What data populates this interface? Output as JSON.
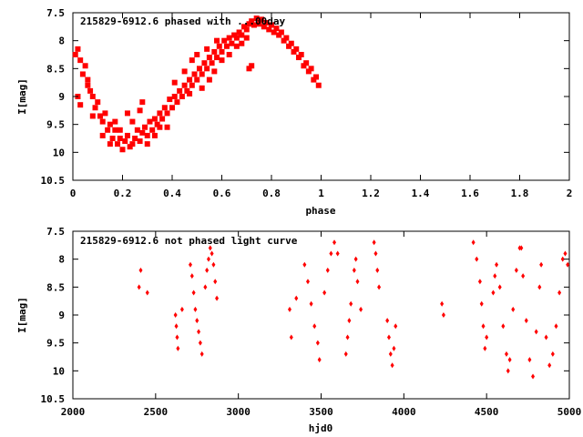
{
  "chart_data": [
    {
      "type": "scatter",
      "title": "215829-6912.6 phased with ...00day",
      "xlabel": "phase",
      "ylabel": "I[mag]",
      "xlim": [
        0,
        2
      ],
      "ylim": [
        10.5,
        7.5
      ],
      "y_inverted": true,
      "x_ticks": [
        0,
        0.2,
        0.4,
        0.6,
        0.8,
        1,
        1.2,
        1.4,
        1.6,
        1.8,
        2
      ],
      "x_tick_labels": [
        "0",
        "0.2",
        "0.4",
        "0.6",
        "0.8",
        "1",
        "1.2",
        "1.4",
        "1.6",
        "1.8",
        "2"
      ],
      "y_ticks": [
        7.5,
        8,
        8.5,
        9,
        9.5,
        10,
        10.5
      ],
      "y_tick_labels": [
        "7.5",
        "8",
        "8.5",
        "9",
        "9.5",
        "10",
        "10.5"
      ],
      "grid": false,
      "marker": "filled-square",
      "color": "#ff0000",
      "series": [
        {
          "points": [
            [
              0.01,
              8.25
            ],
            [
              0.03,
              8.35
            ],
            [
              0.04,
              8.6
            ],
            [
              0.05,
              8.45
            ],
            [
              0.06,
              8.7
            ],
            [
              0.07,
              8.9
            ],
            [
              0.08,
              9.0
            ],
            [
              0.09,
              9.2
            ],
            [
              0.1,
              9.1
            ],
            [
              0.11,
              9.35
            ],
            [
              0.12,
              9.45
            ],
            [
              0.13,
              9.3
            ],
            [
              0.14,
              9.6
            ],
            [
              0.15,
              9.5
            ],
            [
              0.16,
              9.75
            ],
            [
              0.17,
              9.6
            ],
            [
              0.18,
              9.85
            ],
            [
              0.19,
              9.75
            ],
            [
              0.2,
              9.95
            ],
            [
              0.21,
              9.8
            ],
            [
              0.22,
              9.7
            ],
            [
              0.23,
              9.9
            ],
            [
              0.24,
              9.85
            ],
            [
              0.25,
              9.75
            ],
            [
              0.26,
              9.6
            ],
            [
              0.27,
              9.8
            ],
            [
              0.28,
              9.65
            ],
            [
              0.29,
              9.55
            ],
            [
              0.3,
              9.7
            ],
            [
              0.31,
              9.45
            ],
            [
              0.32,
              9.6
            ],
            [
              0.33,
              9.4
            ],
            [
              0.34,
              9.5
            ],
            [
              0.35,
              9.3
            ],
            [
              0.36,
              9.4
            ],
            [
              0.37,
              9.2
            ],
            [
              0.38,
              9.3
            ],
            [
              0.39,
              9.05
            ],
            [
              0.4,
              9.2
            ],
            [
              0.41,
              9.0
            ],
            [
              0.42,
              9.1
            ],
            [
              0.43,
              8.9
            ],
            [
              0.44,
              9.0
            ],
            [
              0.45,
              8.8
            ],
            [
              0.46,
              8.9
            ],
            [
              0.47,
              8.7
            ],
            [
              0.48,
              8.8
            ],
            [
              0.49,
              8.6
            ],
            [
              0.5,
              8.7
            ],
            [
              0.51,
              8.5
            ],
            [
              0.52,
              8.6
            ],
            [
              0.53,
              8.4
            ],
            [
              0.54,
              8.5
            ],
            [
              0.55,
              8.3
            ],
            [
              0.56,
              8.4
            ],
            [
              0.57,
              8.2
            ],
            [
              0.58,
              8.3
            ],
            [
              0.59,
              8.1
            ],
            [
              0.6,
              8.2
            ],
            [
              0.61,
              8.0
            ],
            [
              0.62,
              8.1
            ],
            [
              0.63,
              7.95
            ],
            [
              0.64,
              8.05
            ],
            [
              0.65,
              7.9
            ],
            [
              0.66,
              7.95
            ],
            [
              0.67,
              7.85
            ],
            [
              0.68,
              7.9
            ],
            [
              0.69,
              7.75
            ],
            [
              0.7,
              7.8
            ],
            [
              0.71,
              7.7
            ],
            [
              0.72,
              7.65
            ],
            [
              0.73,
              7.72
            ],
            [
              0.74,
              7.6
            ],
            [
              0.75,
              7.7
            ],
            [
              0.76,
              7.62
            ],
            [
              0.77,
              7.75
            ],
            [
              0.78,
              7.68
            ],
            [
              0.79,
              7.8
            ],
            [
              0.8,
              7.72
            ],
            [
              0.81,
              7.85
            ],
            [
              0.82,
              7.78
            ],
            [
              0.83,
              7.9
            ],
            [
              0.84,
              7.85
            ],
            [
              0.85,
              8.0
            ],
            [
              0.86,
              7.95
            ],
            [
              0.87,
              8.1
            ],
            [
              0.88,
              8.05
            ],
            [
              0.89,
              8.2
            ],
            [
              0.9,
              8.15
            ],
            [
              0.91,
              8.3
            ],
            [
              0.92,
              8.25
            ],
            [
              0.93,
              8.45
            ],
            [
              0.94,
              8.4
            ],
            [
              0.95,
              8.55
            ],
            [
              0.96,
              8.5
            ],
            [
              0.97,
              8.7
            ],
            [
              0.98,
              8.65
            ],
            [
              0.99,
              8.8
            ],
            [
              0.72,
              8.45
            ],
            [
              0.71,
              8.5
            ],
            [
              0.02,
              9.0
            ],
            [
              0.03,
              9.15
            ],
            [
              0.08,
              9.35
            ],
            [
              0.06,
              8.8
            ],
            [
              0.02,
              8.15
            ],
            [
              0.17,
              9.45
            ],
            [
              0.19,
              9.6
            ],
            [
              0.15,
              9.85
            ],
            [
              0.12,
              9.7
            ],
            [
              0.22,
              9.3
            ],
            [
              0.24,
              9.45
            ],
            [
              0.3,
              9.85
            ],
            [
              0.33,
              9.7
            ],
            [
              0.35,
              9.55
            ],
            [
              0.38,
              9.55
            ],
            [
              0.28,
              9.1
            ],
            [
              0.27,
              9.25
            ],
            [
              0.45,
              8.55
            ],
            [
              0.47,
              8.95
            ],
            [
              0.52,
              8.85
            ],
            [
              0.55,
              8.7
            ],
            [
              0.57,
              8.55
            ],
            [
              0.6,
              8.35
            ],
            [
              0.63,
              8.25
            ],
            [
              0.66,
              8.1
            ],
            [
              0.68,
              8.05
            ],
            [
              0.7,
              7.95
            ],
            [
              0.48,
              8.35
            ],
            [
              0.5,
              8.25
            ],
            [
              0.41,
              8.75
            ],
            [
              0.54,
              8.15
            ],
            [
              0.58,
              8.0
            ]
          ]
        }
      ],
      "annotation": "215829-6912.6 phased with ...00day"
    },
    {
      "type": "scatter",
      "title": "215829-6912.6 not phased light curve",
      "xlabel": "hjd0",
      "ylabel": "I[mag]",
      "xlim": [
        2000,
        5000
      ],
      "ylim": [
        10.5,
        7.5
      ],
      "y_inverted": true,
      "x_ticks": [
        2000,
        2500,
        3000,
        3500,
        4000,
        4500,
        5000
      ],
      "x_tick_labels": [
        "2000",
        "2500",
        "3000",
        "3500",
        "4000",
        "4500",
        "5000"
      ],
      "y_ticks": [
        7.5,
        8,
        8.5,
        9,
        9.5,
        10,
        10.5
      ],
      "y_tick_labels": [
        "7.5",
        "8",
        "8.5",
        "9",
        "9.5",
        "10",
        "10.5"
      ],
      "grid": false,
      "marker": "filled-diamond",
      "color": "#ff0000",
      "series": [
        {
          "points": [
            [
              2400,
              8.5
            ],
            [
              2410,
              8.2
            ],
            [
              2450,
              8.6
            ],
            [
              2620,
              9.0
            ],
            [
              2625,
              9.2
            ],
            [
              2630,
              9.4
            ],
            [
              2635,
              9.6
            ],
            [
              2660,
              8.9
            ],
            [
              2710,
              8.1
            ],
            [
              2720,
              8.3
            ],
            [
              2730,
              8.6
            ],
            [
              2740,
              8.9
            ],
            [
              2750,
              9.1
            ],
            [
              2760,
              9.3
            ],
            [
              2770,
              9.5
            ],
            [
              2780,
              9.7
            ],
            [
              2800,
              8.5
            ],
            [
              2810,
              8.2
            ],
            [
              2820,
              8.0
            ],
            [
              2830,
              7.8
            ],
            [
              2840,
              7.9
            ],
            [
              2850,
              8.1
            ],
            [
              2860,
              8.4
            ],
            [
              2870,
              8.7
            ],
            [
              3310,
              8.9
            ],
            [
              3320,
              9.4
            ],
            [
              3350,
              8.7
            ],
            [
              3400,
              8.1
            ],
            [
              3420,
              8.4
            ],
            [
              3440,
              8.8
            ],
            [
              3460,
              9.2
            ],
            [
              3480,
              9.5
            ],
            [
              3490,
              9.8
            ],
            [
              3520,
              8.6
            ],
            [
              3540,
              8.2
            ],
            [
              3560,
              7.9
            ],
            [
              3580,
              7.7
            ],
            [
              3600,
              7.9
            ],
            [
              3650,
              9.7
            ],
            [
              3660,
              9.4
            ],
            [
              3670,
              9.1
            ],
            [
              3680,
              8.8
            ],
            [
              3700,
              8.2
            ],
            [
              3710,
              8.0
            ],
            [
              3720,
              8.4
            ],
            [
              3740,
              8.9
            ],
            [
              3820,
              7.7
            ],
            [
              3830,
              7.9
            ],
            [
              3840,
              8.2
            ],
            [
              3850,
              8.5
            ],
            [
              3900,
              9.1
            ],
            [
              3910,
              9.4
            ],
            [
              3920,
              9.7
            ],
            [
              3930,
              9.9
            ],
            [
              3940,
              9.6
            ],
            [
              3950,
              9.2
            ],
            [
              4230,
              8.8
            ],
            [
              4240,
              9.0
            ],
            [
              4420,
              7.7
            ],
            [
              4440,
              8.0
            ],
            [
              4460,
              8.4
            ],
            [
              4470,
              8.8
            ],
            [
              4480,
              9.2
            ],
            [
              4490,
              9.6
            ],
            [
              4500,
              9.4
            ],
            [
              4540,
              8.6
            ],
            [
              4550,
              8.3
            ],
            [
              4560,
              8.1
            ],
            [
              4580,
              8.5
            ],
            [
              4600,
              9.2
            ],
            [
              4620,
              9.7
            ],
            [
              4630,
              10.0
            ],
            [
              4640,
              9.8
            ],
            [
              4660,
              8.9
            ],
            [
              4680,
              8.2
            ],
            [
              4700,
              7.8
            ],
            [
              4710,
              7.8
            ],
            [
              4720,
              8.3
            ],
            [
              4740,
              9.1
            ],
            [
              4760,
              9.8
            ],
            [
              4780,
              10.1
            ],
            [
              4800,
              9.3
            ],
            [
              4820,
              8.5
            ],
            [
              4830,
              8.1
            ],
            [
              4860,
              9.4
            ],
            [
              4880,
              9.9
            ],
            [
              4900,
              9.7
            ],
            [
              4920,
              9.2
            ],
            [
              4940,
              8.6
            ],
            [
              4960,
              8.0
            ],
            [
              4975,
              7.9
            ],
            [
              4990,
              8.1
            ]
          ]
        }
      ],
      "annotation": "215829-6912.6 not phased light curve"
    }
  ]
}
